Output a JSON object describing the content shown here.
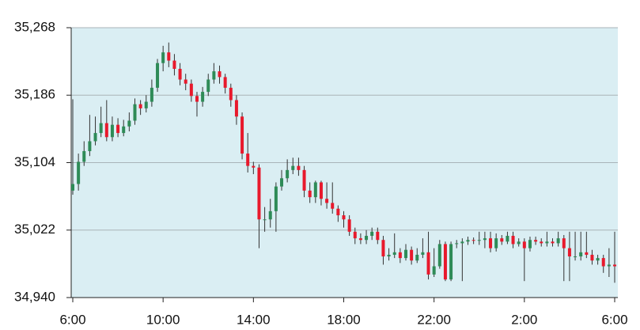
{
  "chart_data": {
    "type": "candlestick",
    "up_color": "#2e8b57",
    "down_color": "#e8192c",
    "background": "#daeef3",
    "grid": true,
    "xlim": [
      -0.07,
      24.14
    ],
    "xticks": [
      {
        "value": 0,
        "label": "6:00"
      },
      {
        "value": 4,
        "label": "10:00"
      },
      {
        "value": 8,
        "label": "14:00"
      },
      {
        "value": 12,
        "label": "18:00"
      },
      {
        "value": 16,
        "label": "22:00"
      },
      {
        "value": 20,
        "label": "2:00"
      },
      {
        "value": 24,
        "label": "6:00"
      }
    ],
    "ylim": [
      34940,
      35268
    ],
    "yticks": [
      {
        "value": 34940,
        "label": "34,940"
      },
      {
        "value": 35022,
        "label": "35,022"
      },
      {
        "value": 35104,
        "label": "35,104"
      },
      {
        "value": 35186,
        "label": "35,186"
      },
      {
        "value": 35268,
        "label": "35,268"
      }
    ],
    "x": [
      0,
      0.25,
      0.5,
      0.75,
      1,
      1.25,
      1.5,
      1.75,
      2,
      2.25,
      2.5,
      2.75,
      3,
      3.25,
      3.5,
      3.75,
      4,
      4.25,
      4.5,
      4.75,
      5,
      5.25,
      5.5,
      5.75,
      6,
      6.25,
      6.5,
      6.75,
      7,
      7.25,
      7.5,
      7.75,
      8,
      8.25,
      8.5,
      8.75,
      9,
      9.25,
      9.5,
      9.75,
      10,
      10.25,
      10.5,
      10.75,
      11,
      11.25,
      11.5,
      11.75,
      12,
      12.25,
      12.5,
      12.75,
      13,
      13.25,
      13.5,
      13.75,
      14,
      14.25,
      14.5,
      14.75,
      15,
      15.25,
      15.5,
      15.75,
      16,
      16.25,
      16.5,
      16.75,
      17,
      17.25,
      17.5,
      17.75,
      18,
      18.25,
      18.5,
      18.75,
      19,
      19.25,
      19.5,
      19.75,
      20,
      20.25,
      20.5,
      20.75,
      21,
      21.25,
      21.5,
      21.75,
      22,
      22.25,
      22.5,
      22.75,
      23,
      23.25,
      23.5,
      23.75,
      24
    ],
    "open": [
      35070,
      35078,
      35105,
      35118,
      35130,
      35140,
      35152,
      35135,
      35150,
      35140,
      35148,
      35155,
      35175,
      35170,
      35178,
      35195,
      35225,
      35238,
      35228,
      35218,
      35205,
      35200,
      35185,
      35178,
      35190,
      35205,
      35215,
      35208,
      35195,
      35180,
      35160,
      35115,
      35100,
      35098,
      35035,
      35035,
      35045,
      35075,
      35085,
      35095,
      35100,
      35095,
      35070,
      35062,
      35080,
      35060,
      35055,
      35048,
      35040,
      35035,
      35020,
      35012,
      35010,
      35015,
      35020,
      35010,
      34990,
      34992,
      34995,
      34988,
      34998,
      34985,
      34992,
      34995,
      34968,
      34978,
      35005,
      34962,
      35005,
      35006,
      35008,
      35010,
      35009,
      35010,
      35012,
      35000,
      35012,
      35008,
      35015,
      35005,
      35008,
      35000,
      35010,
      35008,
      35006,
      35008,
      35006,
      35012,
      35000,
      34990,
      34990,
      34995,
      34992,
      34985,
      34988,
      34978,
      34980
    ],
    "high": [
      35181,
      35115,
      35130,
      35162,
      35160,
      35172,
      35180,
      35160,
      35158,
      35156,
      35165,
      35182,
      35180,
      35186,
      35205,
      35230,
      35246,
      35250,
      35236,
      35225,
      35212,
      35205,
      35190,
      35196,
      35212,
      35225,
      35222,
      35212,
      35200,
      35186,
      35165,
      35140,
      35105,
      35102,
      35050,
      35060,
      35080,
      35095,
      35108,
      35110,
      35110,
      35100,
      35080,
      35082,
      35082,
      35080,
      35080,
      35052,
      35045,
      35040,
      35025,
      35018,
      35022,
      35025,
      35025,
      35015,
      35000,
      35018,
      35000,
      35005,
      35002,
      35000,
      35012,
      35020,
      35000,
      35010,
      35008,
      35008,
      35010,
      35012,
      35014,
      35013,
      35020,
      35020,
      35020,
      35018,
      35016,
      35020,
      35020,
      35012,
      35012,
      35014,
      35014,
      35012,
      35020,
      35012,
      35020,
      35016,
      35020,
      35020,
      35020,
      35020,
      34998,
      34992,
      34992,
      35000,
      35020
    ],
    "low": [
      35065,
      35070,
      35100,
      35112,
      35125,
      35135,
      35130,
      35130,
      35135,
      35136,
      35142,
      35150,
      35162,
      35165,
      35172,
      35190,
      35215,
      35220,
      35210,
      35198,
      35192,
      35178,
      35160,
      35172,
      35185,
      35200,
      35200,
      35188,
      35172,
      35150,
      35108,
      35092,
      35090,
      35000,
      35020,
      35025,
      35020,
      35070,
      35080,
      35090,
      35088,
      35062,
      35055,
      35055,
      35052,
      35048,
      35042,
      35032,
      35025,
      35015,
      35005,
      35005,
      35005,
      35010,
      35005,
      34980,
      34985,
      34988,
      34982,
      34985,
      34980,
      34982,
      34988,
      34962,
      34965,
      34975,
      34960,
      34960,
      35000,
      34960,
      35004,
      35005,
      35004,
      35000,
      34995,
      34996,
      35004,
      35005,
      35000,
      35002,
      34960,
      34996,
      35004,
      35002,
      35002,
      35002,
      35002,
      34960,
      34960,
      34985,
      34985,
      34988,
      34980,
      34980,
      34970,
      34965,
      34958
    ],
    "close": [
      35078,
      35105,
      35118,
      35130,
      35140,
      35152,
      35135,
      35150,
      35140,
      35148,
      35155,
      35175,
      35170,
      35178,
      35195,
      35225,
      35238,
      35228,
      35218,
      35205,
      35200,
      35185,
      35178,
      35190,
      35205,
      35215,
      35208,
      35195,
      35180,
      35160,
      35115,
      35100,
      35098,
      35035,
      35035,
      35045,
      35075,
      35085,
      35095,
      35100,
      35095,
      35070,
      35062,
      35080,
      35060,
      35055,
      35048,
      35040,
      35035,
      35020,
      35012,
      35010,
      35015,
      35020,
      35010,
      34990,
      34992,
      34995,
      34988,
      34998,
      34985,
      34992,
      34995,
      34968,
      34978,
      35005,
      34962,
      35005,
      35006,
      35008,
      35010,
      35009,
      35010,
      35012,
      35000,
      35012,
      35008,
      35015,
      35005,
      35008,
      35000,
      35010,
      35008,
      35006,
      35008,
      35006,
      35012,
      35000,
      34990,
      34990,
      34995,
      34992,
      34985,
      34988,
      34978,
      34980,
      34978
    ]
  }
}
